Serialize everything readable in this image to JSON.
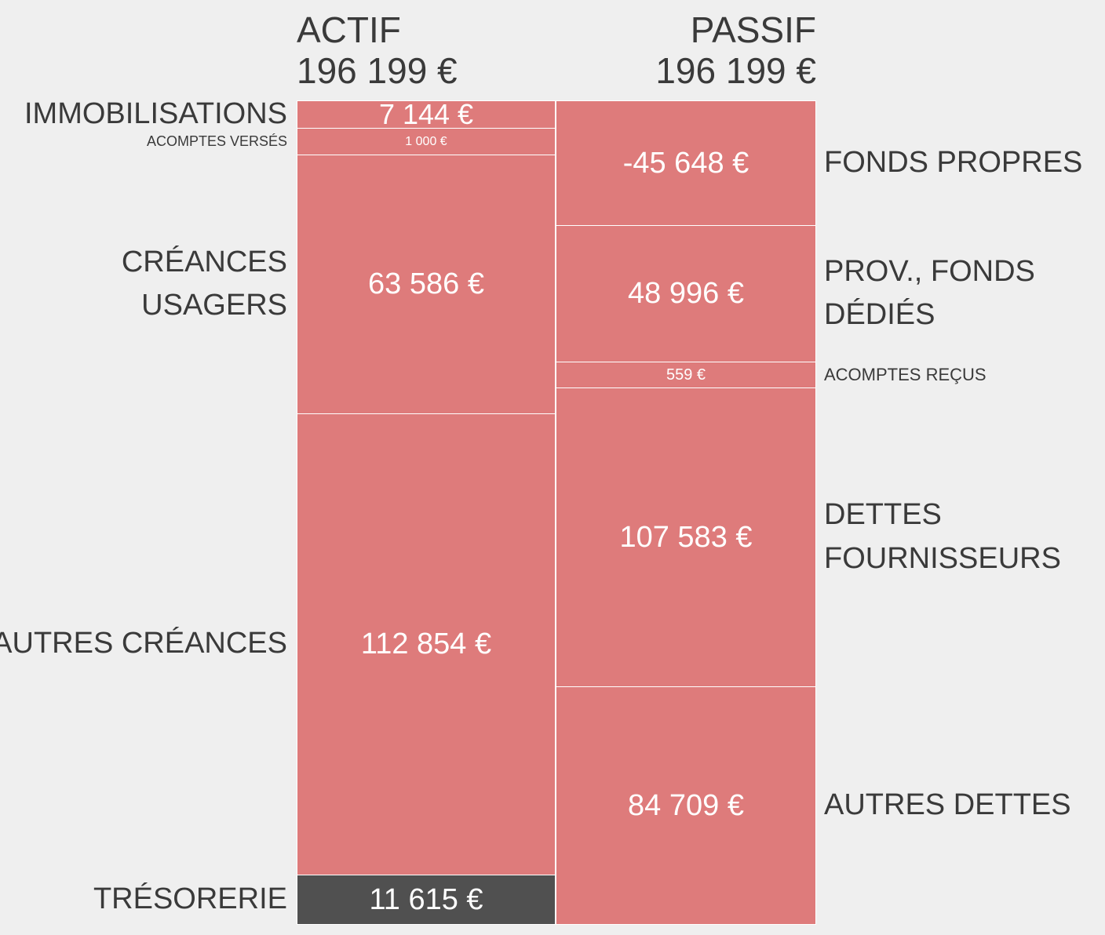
{
  "actif": {
    "title": "ACTIF",
    "total": "196 199 €",
    "items": [
      {
        "label": [
          "IMMOBILISATIONS"
        ],
        "value": "7 144 €"
      },
      {
        "label": [
          "ACOMPTES VERSÉS"
        ],
        "value": "1 000 €"
      },
      {
        "label": [
          "CRÉANCES",
          "USAGERS"
        ],
        "value": "63 586 €"
      },
      {
        "label": [
          "AUTRES CRÉANCES"
        ],
        "value": "112 854 €"
      },
      {
        "label": [
          "TRÉSORERIE"
        ],
        "value": "11 615 €"
      }
    ]
  },
  "passif": {
    "title": "PASSIF",
    "total": "196 199 €",
    "items": [
      {
        "label": [
          "FONDS PROPRES"
        ],
        "value": "-45 648 €"
      },
      {
        "label": [
          "PROV., FONDS",
          "DÉDIÉS"
        ],
        "value": "48 996 €"
      },
      {
        "label": [
          "ACOMPTES REÇUS"
        ],
        "value": "559 €"
      },
      {
        "label": [
          "DETTES",
          "FOURNISSEURS"
        ],
        "value": "107 583 €"
      },
      {
        "label": [
          "AUTRES DETTES"
        ],
        "value": "84 709 €"
      }
    ]
  }
}
